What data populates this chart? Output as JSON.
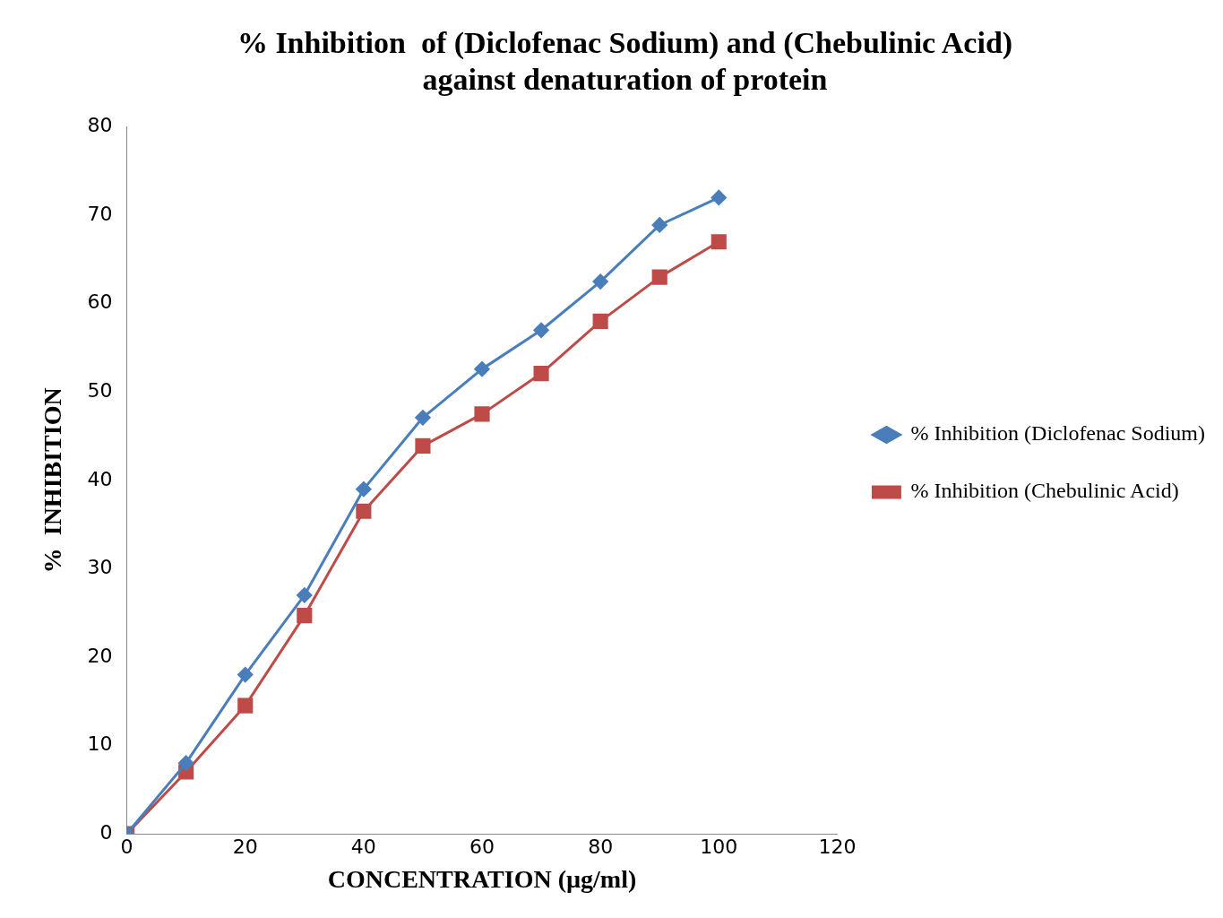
{
  "chart_data": {
    "type": "line",
    "title": [
      "% Inhibition  of (Diclofenac Sodium) and (Chebulinic Acid)",
      "against denaturation of protein"
    ],
    "xlabel": "CONCENTRATION (µg/ml)",
    "ylabel": "%  INHIBITION",
    "x": [
      0,
      10,
      20,
      30,
      40,
      50,
      60,
      70,
      80,
      90,
      100
    ],
    "series": [
      {
        "name": "% Inhibition (Diclofenac Sodium)",
        "color": "#4a7ebb",
        "marker": "diamond",
        "values": [
          0,
          8,
          18,
          27,
          39,
          47.1,
          52.6,
          57,
          62.5,
          68.9,
          72
        ]
      },
      {
        "name": "% Inhibition (Chebulinic Acid)",
        "color": "#be4b48",
        "marker": "square",
        "values": [
          0,
          7,
          14.5,
          24.7,
          36.5,
          43.9,
          47.5,
          52.1,
          58,
          63,
          67
        ]
      }
    ],
    "xlim": [
      0,
      120
    ],
    "xticks": [
      0,
      20,
      40,
      60,
      80,
      100,
      120
    ],
    "ylim": [
      0,
      80
    ],
    "yticks": [
      0,
      10,
      20,
      30,
      40,
      50,
      60,
      70,
      80
    ],
    "grid": false,
    "legend": "right",
    "line_style": "solid"
  }
}
